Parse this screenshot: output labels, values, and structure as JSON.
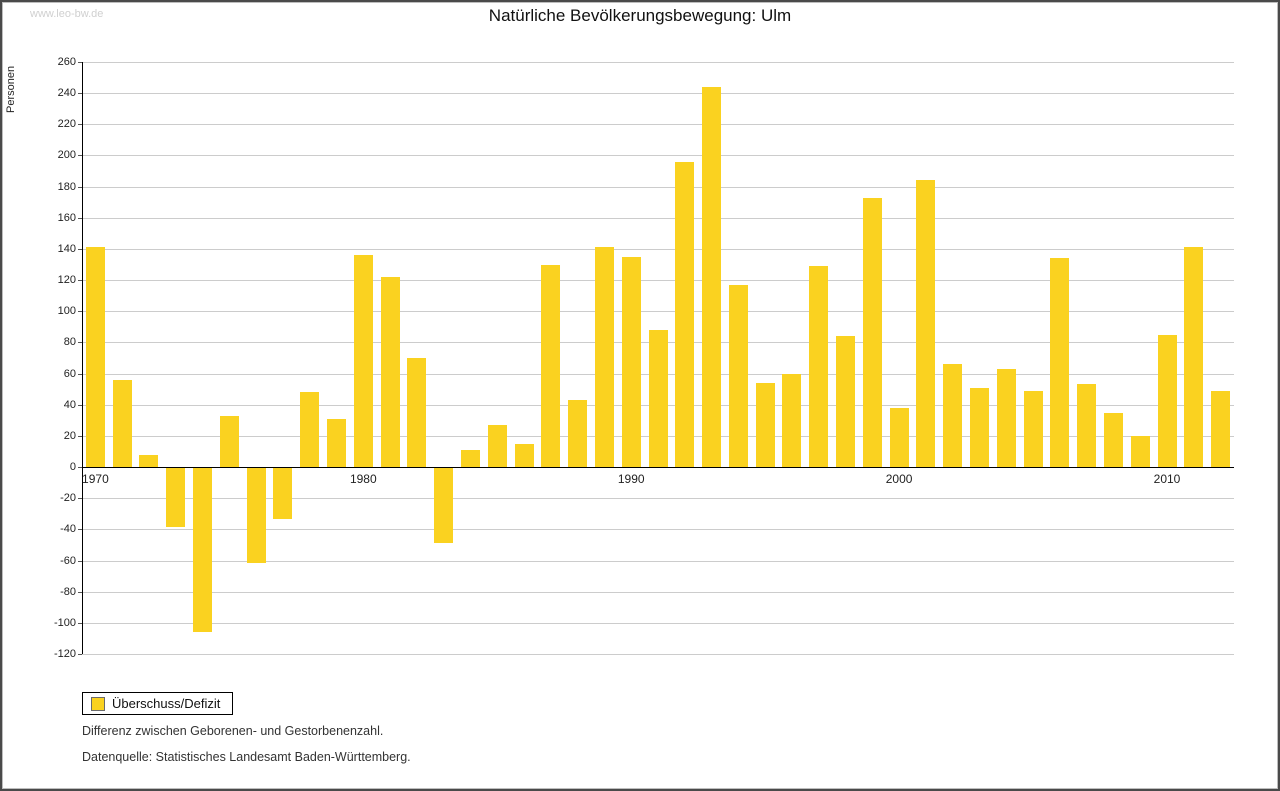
{
  "watermark": "www.leo-bw.de",
  "title": "Natürliche Bevölkerungsbewegung: Ulm",
  "legend": {
    "label": "Überschuss/Defizit"
  },
  "captions": [
    "Differenz zwischen Geborenen- und Gestorbenenzahl.",
    "Datenquelle: Statistisches Landesamt Baden-Württemberg."
  ],
  "chart_data": {
    "type": "bar",
    "title": "Natürliche Bevölkerungsbewegung: Ulm",
    "xlabel": "",
    "ylabel": "Personen",
    "ylim": [
      -120,
      260
    ],
    "ytick_step": 20,
    "grid": true,
    "legend_position": "bottom-left",
    "bar_color": "#FAD220",
    "x": [
      1970,
      1971,
      1972,
      1973,
      1974,
      1975,
      1976,
      1977,
      1978,
      1979,
      1980,
      1981,
      1982,
      1983,
      1984,
      1985,
      1986,
      1987,
      1988,
      1989,
      1990,
      1991,
      1992,
      1993,
      1994,
      1995,
      1996,
      1997,
      1998,
      1999,
      2000,
      2001,
      2002,
      2003,
      2004,
      2005,
      2006,
      2007,
      2008,
      2009,
      2010,
      2011,
      2012
    ],
    "values": [
      141,
      56,
      8,
      -38,
      -105,
      33,
      -61,
      -33,
      48,
      31,
      136,
      122,
      70,
      -48,
      11,
      27,
      15,
      130,
      43,
      141,
      135,
      88,
      196,
      244,
      117,
      54,
      60,
      129,
      84,
      173,
      38,
      184,
      66,
      51,
      63,
      49,
      134,
      53,
      35,
      20,
      85,
      141,
      49
    ],
    "x_axis_labels": [
      1970,
      1980,
      1990,
      2000,
      2010
    ],
    "series_name": "Überschuss/Defizit"
  }
}
